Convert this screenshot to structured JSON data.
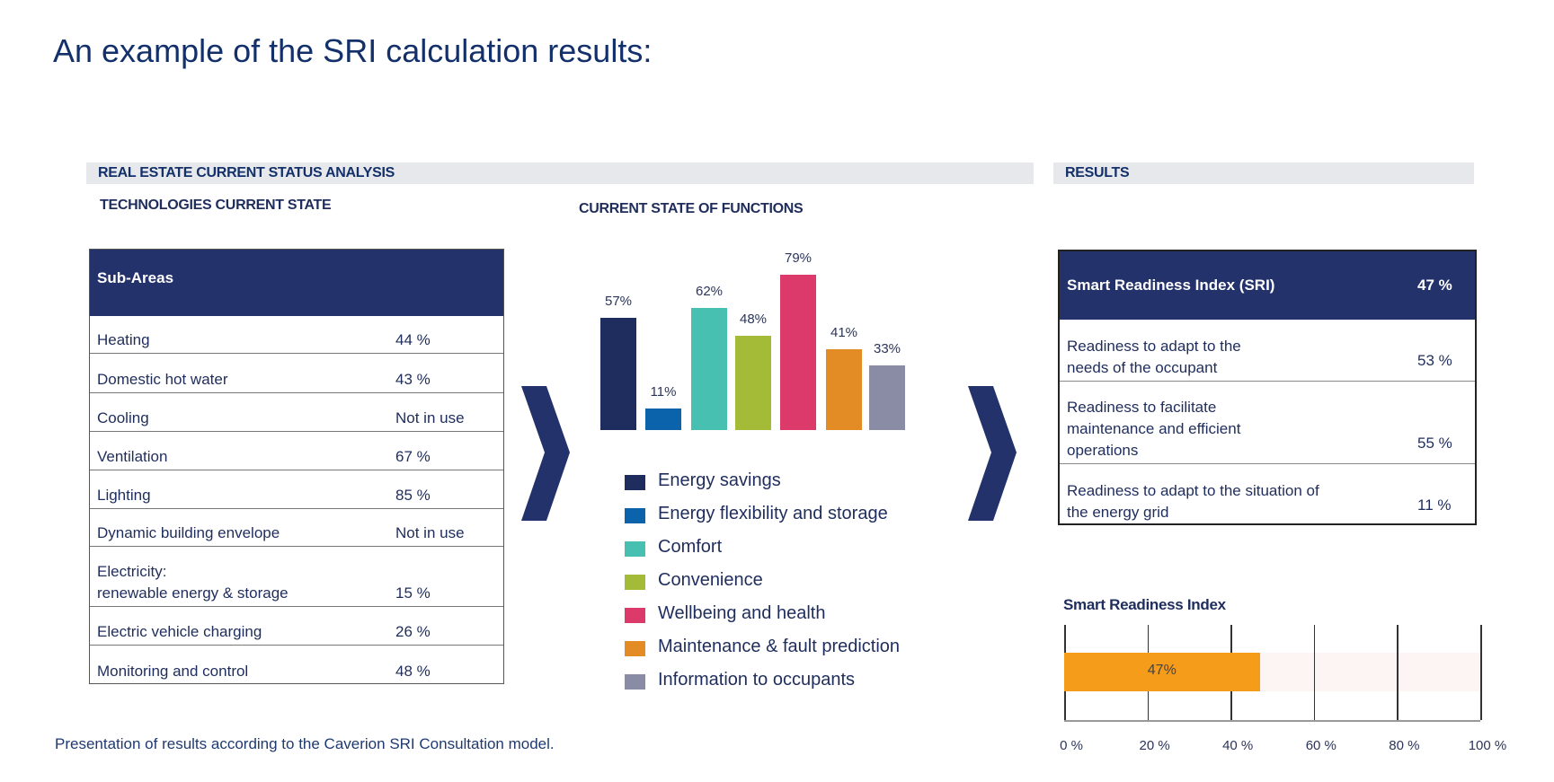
{
  "title": "An example of the SRI calculation results:",
  "left_section_header": "REAL ESTATE CURRENT STATUS ANALYSIS",
  "results_section_header": "RESULTS",
  "technologies": {
    "title": "TECHNOLOGIES CURRENT STATE",
    "header": "Sub-Areas",
    "rows": [
      {
        "label": "Heating",
        "value": "44 %"
      },
      {
        "label": "Domestic hot water",
        "value": "43 %"
      },
      {
        "label": "Cooling",
        "value": "Not in use"
      },
      {
        "label": "Ventilation",
        "value": "67 %"
      },
      {
        "label": "Lighting",
        "value": "85 %"
      },
      {
        "label": "Dynamic building envelope",
        "value": "Not in use"
      },
      {
        "label": "Electricity:\nrenewable energy & storage",
        "value": "15 %"
      },
      {
        "label": "Electric vehicle charging",
        "value": "26 %"
      },
      {
        "label": "Monitoring and control",
        "value": "48 %"
      }
    ]
  },
  "results": {
    "header_label": "Smart Readiness Index (SRI)",
    "header_value": "47 %",
    "rows": [
      {
        "label": "Readiness to adapt to the\nneeds of the occupant",
        "value": "53 %"
      },
      {
        "label": "Readiness to facilitate\nmaintenance and efficient\noperations",
        "value": "55 %"
      },
      {
        "label": "Readiness to adapt to the situation of\nthe energy grid",
        "value": "11 %"
      }
    ]
  },
  "footer": "Presentation of results according to the Caverion SRI Consultation model.",
  "icons": {
    "arrows": "chevron-right-icon"
  },
  "chart_data": [
    {
      "type": "bar",
      "title": "CURRENT STATE OF FUNCTIONS",
      "categories": [
        "Energy savings",
        "Energy flexibility and storage",
        "Comfort",
        "Convenience",
        "Wellbeing and health",
        "Maintenance & fault prediction",
        "Information to occupants"
      ],
      "values": [
        57,
        11,
        62,
        48,
        79,
        41,
        33
      ],
      "data_labels": [
        "57%",
        "11%",
        "62%",
        "48%",
        "79%",
        "41%",
        "33%"
      ],
      "colors": [
        "#1f2d5e",
        "#0b64ab",
        "#47bfb1",
        "#a3bb36",
        "#db3a6a",
        "#e38c26",
        "#8a8ba4"
      ],
      "legend": "bottom",
      "ylim": [
        0,
        80
      ],
      "grid": false
    },
    {
      "type": "bar",
      "orientation": "horizontal",
      "title": "Smart Readiness Index",
      "values": [
        47
      ],
      "data_labels": [
        "47%"
      ],
      "xlim": [
        0,
        100
      ],
      "ticks": [
        "0 %",
        "20 %",
        "40 %",
        "60 %",
        "80 %",
        "100 %"
      ],
      "tick_values": [
        0,
        20,
        40,
        60,
        80,
        100
      ],
      "colors": {
        "fill": "#f59c1a",
        "track": "#fdf5f3"
      },
      "grid": true
    }
  ]
}
